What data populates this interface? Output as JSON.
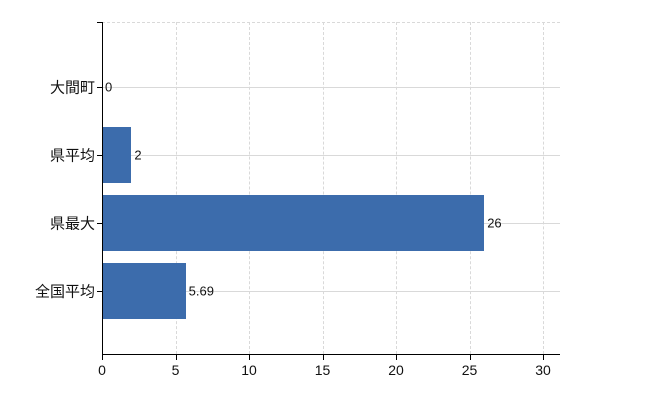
{
  "chart_data": {
    "type": "bar",
    "orientation": "horizontal",
    "title": "",
    "xlabel": "",
    "ylabel": "",
    "categories": [
      "大間町",
      "県平均",
      "県最大",
      "全国平均"
    ],
    "values": [
      0,
      2,
      26,
      5.69
    ],
    "value_labels": [
      "0",
      "2",
      "26",
      "5.69"
    ],
    "x_ticks": [
      "0",
      "5",
      "10",
      "15",
      "20",
      "25",
      "30"
    ],
    "x_tick_values": [
      0,
      5,
      10,
      15,
      20,
      25,
      30
    ],
    "xlim": [
      0,
      31.2
    ],
    "grid": true,
    "legend": false,
    "colors": {
      "bar": "#3c6cac",
      "grid": "#d9d9d9",
      "axis": "#000000",
      "text": "#111111",
      "background": "#ffffff"
    }
  }
}
